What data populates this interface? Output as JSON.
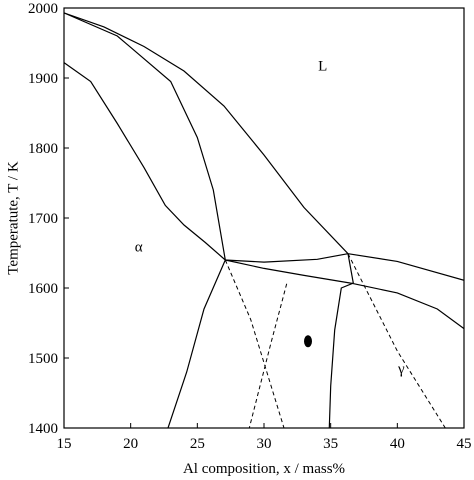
{
  "chart_data": {
    "type": "line",
    "xlabel": "Al composition, x / mass%",
    "ylabel": "Temperatute, T / K",
    "xlim": [
      15,
      45
    ],
    "ylim": [
      1400,
      2000
    ],
    "xticks": [
      15,
      20,
      25,
      30,
      35,
      40,
      45
    ],
    "yticks": [
      1400,
      1500,
      1600,
      1700,
      1800,
      1900,
      2000
    ],
    "grid": false,
    "region_labels": [
      {
        "text": "L",
        "x": 34.4,
        "y": 1911
      },
      {
        "text": "α",
        "x": 20.6,
        "y": 1652
      },
      {
        "text": "γ",
        "x": 40.3,
        "y": 1478
      }
    ],
    "series": [
      {
        "style": "solid",
        "points": [
          [
            15,
            1993
          ],
          [
            19,
            1960
          ],
          [
            23,
            1895
          ],
          [
            25,
            1815
          ],
          [
            26.2,
            1740
          ],
          [
            27.1,
            1640
          ]
        ]
      },
      {
        "style": "solid",
        "points": [
          [
            15,
            1922
          ],
          [
            17,
            1895
          ],
          [
            19,
            1835
          ],
          [
            21,
            1772
          ],
          [
            22.6,
            1718
          ],
          [
            24,
            1690
          ],
          [
            25.6,
            1665
          ],
          [
            27.1,
            1640
          ]
        ]
      },
      {
        "style": "solid",
        "points": [
          [
            27.1,
            1640
          ],
          [
            30,
            1637
          ],
          [
            34,
            1641
          ],
          [
            36.3,
            1649
          ]
        ]
      },
      {
        "style": "solid",
        "points": [
          [
            27.1,
            1640
          ],
          [
            30,
            1628
          ],
          [
            33,
            1618
          ],
          [
            36.5,
            1607
          ]
        ]
      },
      {
        "style": "solid",
        "points": [
          [
            36.3,
            1649
          ],
          [
            36.7,
            1607
          ]
        ]
      },
      {
        "style": "solid",
        "points": [
          [
            15,
            1993
          ],
          [
            18,
            1973
          ],
          [
            21,
            1945
          ],
          [
            24,
            1910
          ],
          [
            27,
            1860
          ],
          [
            30,
            1790
          ],
          [
            33,
            1715
          ],
          [
            36.3,
            1649
          ]
        ]
      },
      {
        "style": "solid",
        "points": [
          [
            36.3,
            1649
          ],
          [
            40,
            1638
          ],
          [
            45,
            1611
          ]
        ]
      },
      {
        "style": "solid",
        "points": [
          [
            36.5,
            1607
          ],
          [
            40,
            1593
          ],
          [
            43,
            1570
          ],
          [
            45,
            1542
          ]
        ]
      },
      {
        "style": "solid",
        "points": [
          [
            27.1,
            1640
          ],
          [
            25.5,
            1570
          ],
          [
            24.2,
            1480
          ],
          [
            22.8,
            1400
          ]
        ]
      },
      {
        "style": "solid",
        "points": [
          [
            36.7,
            1607
          ],
          [
            35.8,
            1600
          ],
          [
            35.3,
            1540
          ],
          [
            35.0,
            1460
          ],
          [
            34.9,
            1400
          ]
        ]
      },
      {
        "style": "dashed",
        "points": [
          [
            27.1,
            1640
          ],
          [
            29,
            1555
          ],
          [
            31.5,
            1400
          ]
        ]
      },
      {
        "style": "dashed",
        "points": [
          [
            31.7,
            1606
          ],
          [
            30.5,
            1520
          ],
          [
            28.9,
            1400
          ]
        ]
      },
      {
        "style": "dashed",
        "points": [
          [
            36.3,
            1649
          ],
          [
            40,
            1510
          ],
          [
            43.6,
            1400
          ]
        ]
      }
    ],
    "markers": [
      {
        "shape": "ellipse",
        "x": 33.3,
        "y": 1524
      }
    ]
  }
}
